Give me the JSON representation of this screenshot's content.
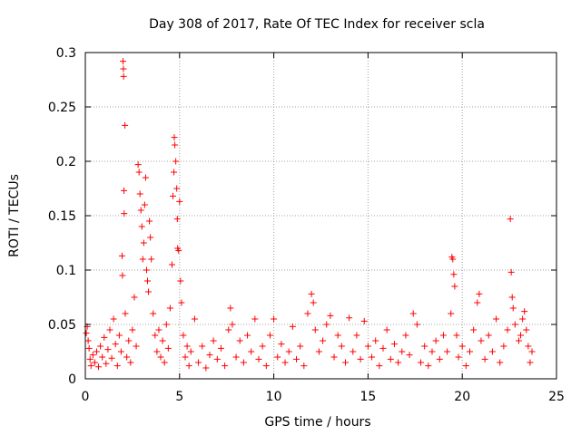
{
  "chart_data": {
    "type": "scatter",
    "title": "Day 308 of 2017, Rate Of TEC Index for receiver scla",
    "xlabel": "GPS time / hours",
    "ylabel": "ROTI / TECUs",
    "xlim": [
      0,
      25
    ],
    "ylim": [
      0,
      0.3
    ],
    "xticks": [
      0,
      5,
      10,
      15,
      20,
      25
    ],
    "xtick_labels": [
      "0",
      "5",
      "10",
      "15",
      "20",
      "25"
    ],
    "yticks": [
      0,
      0.05,
      0.1,
      0.15,
      0.2,
      0.25,
      0.3
    ],
    "ytick_labels": [
      "0",
      "0.05",
      "0.1",
      "0.15",
      "0.2",
      "0.25",
      "0.3"
    ],
    "grid": true,
    "marker": "+",
    "color": "#ff0000",
    "series": [
      {
        "name": "ROTI",
        "points": [
          [
            0.05,
            0.042
          ],
          [
            0.1,
            0.048
          ],
          [
            0.15,
            0.035
          ],
          [
            0.2,
            0.028
          ],
          [
            0.25,
            0.018
          ],
          [
            0.3,
            0.012
          ],
          [
            0.4,
            0.022
          ],
          [
            0.5,
            0.015
          ],
          [
            0.6,
            0.025
          ],
          [
            0.7,
            0.011
          ],
          [
            0.8,
            0.03
          ],
          [
            0.9,
            0.02
          ],
          [
            1.0,
            0.038
          ],
          [
            1.1,
            0.014
          ],
          [
            1.2,
            0.027
          ],
          [
            1.3,
            0.045
          ],
          [
            1.4,
            0.019
          ],
          [
            1.5,
            0.055
          ],
          [
            1.6,
            0.032
          ],
          [
            1.7,
            0.012
          ],
          [
            1.8,
            0.04
          ],
          [
            1.9,
            0.025
          ],
          [
            1.95,
            0.113
          ],
          [
            1.97,
            0.095
          ],
          [
            2.0,
            0.292
          ],
          [
            2.02,
            0.285
          ],
          [
            2.03,
            0.278
          ],
          [
            2.05,
            0.173
          ],
          [
            2.06,
            0.152
          ],
          [
            2.1,
            0.233
          ],
          [
            2.12,
            0.06
          ],
          [
            2.2,
            0.02
          ],
          [
            2.3,
            0.035
          ],
          [
            2.4,
            0.015
          ],
          [
            2.5,
            0.045
          ],
          [
            2.6,
            0.075
          ],
          [
            2.7,
            0.03
          ],
          [
            2.8,
            0.197
          ],
          [
            2.85,
            0.19
          ],
          [
            2.9,
            0.17
          ],
          [
            2.95,
            0.155
          ],
          [
            3.0,
            0.14
          ],
          [
            3.05,
            0.11
          ],
          [
            3.1,
            0.125
          ],
          [
            3.15,
            0.16
          ],
          [
            3.2,
            0.185
          ],
          [
            3.25,
            0.1
          ],
          [
            3.3,
            0.09
          ],
          [
            3.35,
            0.08
          ],
          [
            3.4,
            0.145
          ],
          [
            3.45,
            0.13
          ],
          [
            3.5,
            0.11
          ],
          [
            3.6,
            0.06
          ],
          [
            3.7,
            0.04
          ],
          [
            3.8,
            0.025
          ],
          [
            3.9,
            0.045
          ],
          [
            4.0,
            0.02
          ],
          [
            4.1,
            0.035
          ],
          [
            4.2,
            0.015
          ],
          [
            4.3,
            0.05
          ],
          [
            4.4,
            0.028
          ],
          [
            4.5,
            0.065
          ],
          [
            4.6,
            0.105
          ],
          [
            4.65,
            0.168
          ],
          [
            4.7,
            0.19
          ],
          [
            4.72,
            0.222
          ],
          [
            4.75,
            0.215
          ],
          [
            4.8,
            0.2
          ],
          [
            4.85,
            0.175
          ],
          [
            4.88,
            0.147
          ],
          [
            4.9,
            0.12
          ],
          [
            4.95,
            0.118
          ],
          [
            5.0,
            0.163
          ],
          [
            5.05,
            0.09
          ],
          [
            5.1,
            0.07
          ],
          [
            5.2,
            0.04
          ],
          [
            5.3,
            0.02
          ],
          [
            5.4,
            0.03
          ],
          [
            5.5,
            0.012
          ],
          [
            5.6,
            0.025
          ],
          [
            5.8,
            0.055
          ],
          [
            6.0,
            0.015
          ],
          [
            6.2,
            0.03
          ],
          [
            6.4,
            0.01
          ],
          [
            6.6,
            0.022
          ],
          [
            6.8,
            0.035
          ],
          [
            7.0,
            0.018
          ],
          [
            7.2,
            0.028
          ],
          [
            7.4,
            0.012
          ],
          [
            7.6,
            0.045
          ],
          [
            7.7,
            0.065
          ],
          [
            7.8,
            0.05
          ],
          [
            8.0,
            0.02
          ],
          [
            8.2,
            0.035
          ],
          [
            8.4,
            0.015
          ],
          [
            8.6,
            0.04
          ],
          [
            8.8,
            0.025
          ],
          [
            9.0,
            0.055
          ],
          [
            9.2,
            0.018
          ],
          [
            9.4,
            0.03
          ],
          [
            9.6,
            0.012
          ],
          [
            9.8,
            0.04
          ],
          [
            10.0,
            0.055
          ],
          [
            10.2,
            0.02
          ],
          [
            10.4,
            0.032
          ],
          [
            10.6,
            0.015
          ],
          [
            10.8,
            0.025
          ],
          [
            11.0,
            0.048
          ],
          [
            11.2,
            0.018
          ],
          [
            11.4,
            0.03
          ],
          [
            11.6,
            0.012
          ],
          [
            11.8,
            0.06
          ],
          [
            12.0,
            0.078
          ],
          [
            12.1,
            0.07
          ],
          [
            12.2,
            0.045
          ],
          [
            12.4,
            0.025
          ],
          [
            12.6,
            0.035
          ],
          [
            12.8,
            0.05
          ],
          [
            13.0,
            0.058
          ],
          [
            13.2,
            0.02
          ],
          [
            13.4,
            0.04
          ],
          [
            13.6,
            0.03
          ],
          [
            13.8,
            0.015
          ],
          [
            14.0,
            0.056
          ],
          [
            14.2,
            0.025
          ],
          [
            14.4,
            0.04
          ],
          [
            14.6,
            0.018
          ],
          [
            14.8,
            0.053
          ],
          [
            15.0,
            0.03
          ],
          [
            15.2,
            0.02
          ],
          [
            15.4,
            0.035
          ],
          [
            15.6,
            0.012
          ],
          [
            15.8,
            0.028
          ],
          [
            16.0,
            0.045
          ],
          [
            16.2,
            0.018
          ],
          [
            16.4,
            0.032
          ],
          [
            16.6,
            0.015
          ],
          [
            16.8,
            0.025
          ],
          [
            17.0,
            0.04
          ],
          [
            17.2,
            0.022
          ],
          [
            17.4,
            0.06
          ],
          [
            17.6,
            0.05
          ],
          [
            17.8,
            0.015
          ],
          [
            18.0,
            0.03
          ],
          [
            18.2,
            0.012
          ],
          [
            18.4,
            0.025
          ],
          [
            18.6,
            0.035
          ],
          [
            18.8,
            0.018
          ],
          [
            19.0,
            0.04
          ],
          [
            19.2,
            0.025
          ],
          [
            19.4,
            0.06
          ],
          [
            19.45,
            0.112
          ],
          [
            19.5,
            0.11
          ],
          [
            19.55,
            0.096
          ],
          [
            19.6,
            0.085
          ],
          [
            19.7,
            0.04
          ],
          [
            19.8,
            0.02
          ],
          [
            20.0,
            0.03
          ],
          [
            20.2,
            0.012
          ],
          [
            20.4,
            0.025
          ],
          [
            20.6,
            0.045
          ],
          [
            20.8,
            0.07
          ],
          [
            20.9,
            0.078
          ],
          [
            21.0,
            0.035
          ],
          [
            21.2,
            0.018
          ],
          [
            21.4,
            0.04
          ],
          [
            21.6,
            0.025
          ],
          [
            21.8,
            0.055
          ],
          [
            22.0,
            0.015
          ],
          [
            22.2,
            0.03
          ],
          [
            22.4,
            0.045
          ],
          [
            22.55,
            0.147
          ],
          [
            22.6,
            0.098
          ],
          [
            22.65,
            0.075
          ],
          [
            22.7,
            0.065
          ],
          [
            22.8,
            0.05
          ],
          [
            23.0,
            0.035
          ],
          [
            23.1,
            0.04
          ],
          [
            23.2,
            0.055
          ],
          [
            23.3,
            0.062
          ],
          [
            23.4,
            0.045
          ],
          [
            23.5,
            0.03
          ],
          [
            23.6,
            0.015
          ],
          [
            23.7,
            0.025
          ]
        ]
      }
    ]
  }
}
